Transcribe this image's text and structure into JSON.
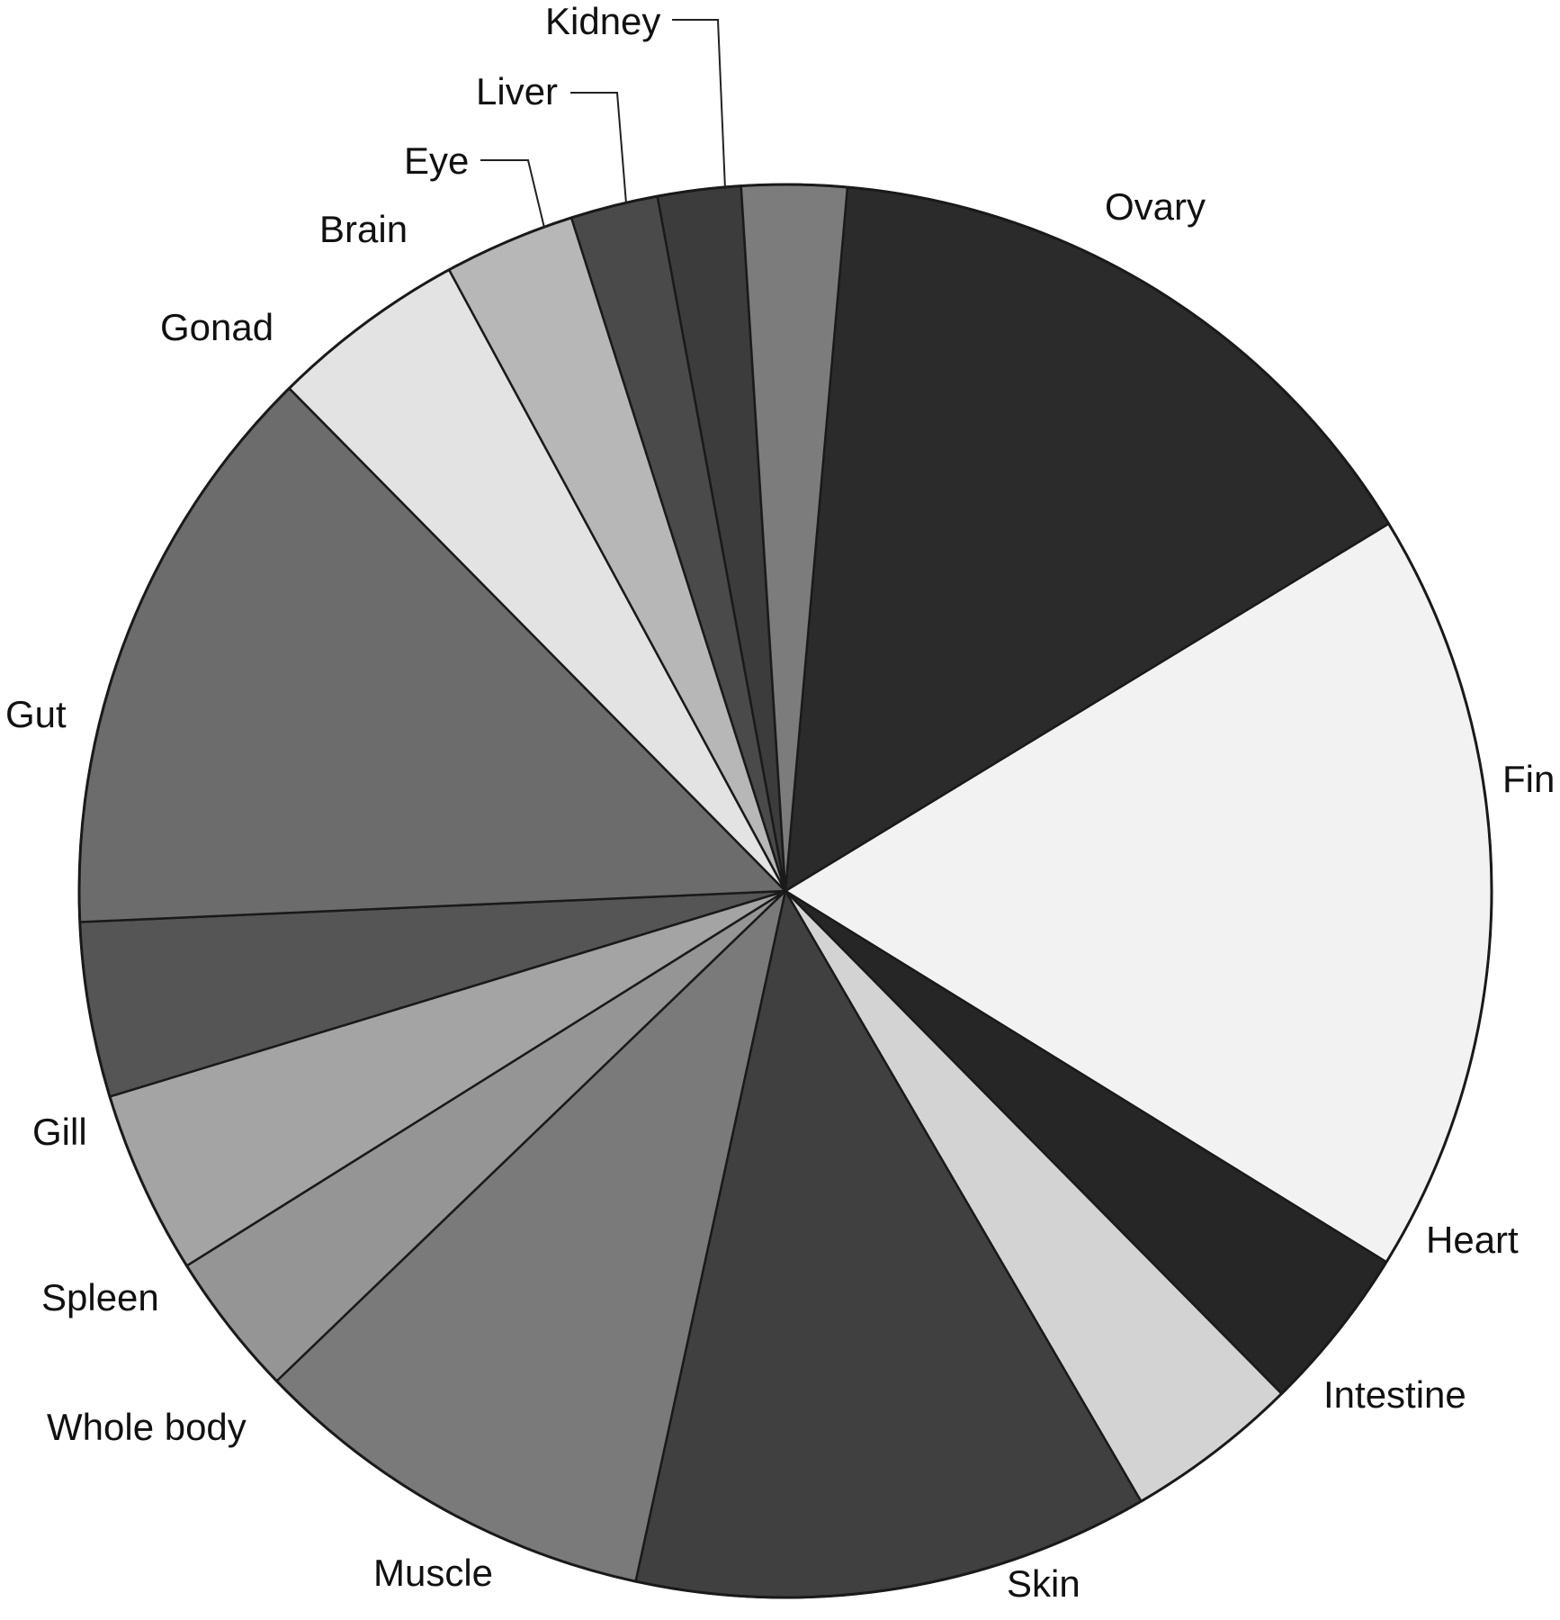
{
  "chart_data": {
    "type": "pie",
    "title": "",
    "start": "12 o'clock, clockwise",
    "slices": [
      {
        "label": "Ovary",
        "percent": 16.3,
        "color": "#2b2b2b"
      },
      {
        "label": "Fin",
        "percent": 17.5,
        "color": "#f2f2f2"
      },
      {
        "label": "Heart",
        "percent": 3.8,
        "color": "#262626"
      },
      {
        "label": "Intestine",
        "percent": 4.0,
        "color": "#d3d3d3"
      },
      {
        "label": "Skin",
        "percent": 11.8,
        "color": "#404040"
      },
      {
        "label": "Muscle",
        "percent": 9.4,
        "color": "#7a7a7a"
      },
      {
        "label": "Whole body",
        "percent": 3.3,
        "color": "#959595"
      },
      {
        "label": "Spleen",
        "percent": 4.2,
        "color": "#a4a4a4"
      },
      {
        "label": "Gill",
        "percent": 4.0,
        "color": "#555555"
      },
      {
        "label": "Gut",
        "percent": 13.3,
        "color": "#6c6c6c"
      },
      {
        "label": "Gonad",
        "percent": 4.5,
        "color": "#e3e3e3"
      },
      {
        "label": "Brain",
        "percent": 3.0,
        "color": "#b7b7b7"
      },
      {
        "label": "Eye",
        "percent": 2.0,
        "color": "#4a4a4a"
      },
      {
        "label": "Liver",
        "percent": 1.9,
        "color": "#3c3c3c"
      },
      {
        "label": "Kidney",
        "percent": 2.4,
        "color": "#7c7c7c"
      }
    ]
  }
}
